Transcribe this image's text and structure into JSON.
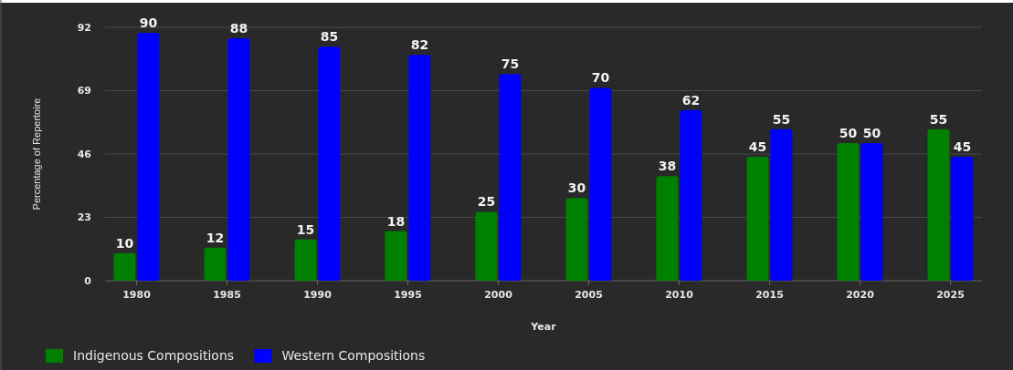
{
  "chart_data": {
    "type": "bar",
    "xlabel": "Year",
    "ylabel": "Percentage of Repertoire",
    "categories": [
      "1980",
      "1985",
      "1990",
      "1995",
      "2000",
      "2005",
      "2010",
      "2015",
      "2020",
      "2025"
    ],
    "series": [
      {
        "name": "Indigenous Compositions",
        "color": "#008000",
        "values": [
          10,
          12,
          15,
          18,
          25,
          30,
          38,
          45,
          50,
          55
        ]
      },
      {
        "name": "Western Compositions",
        "color": "#0000ff",
        "values": [
          90,
          88,
          85,
          82,
          75,
          70,
          62,
          55,
          50,
          45
        ]
      }
    ],
    "ylim": [
      0,
      92
    ],
    "yticks": [
      0,
      23,
      46,
      69,
      92
    ],
    "grid": "y",
    "legend": "bottom left",
    "data_labels": true
  }
}
